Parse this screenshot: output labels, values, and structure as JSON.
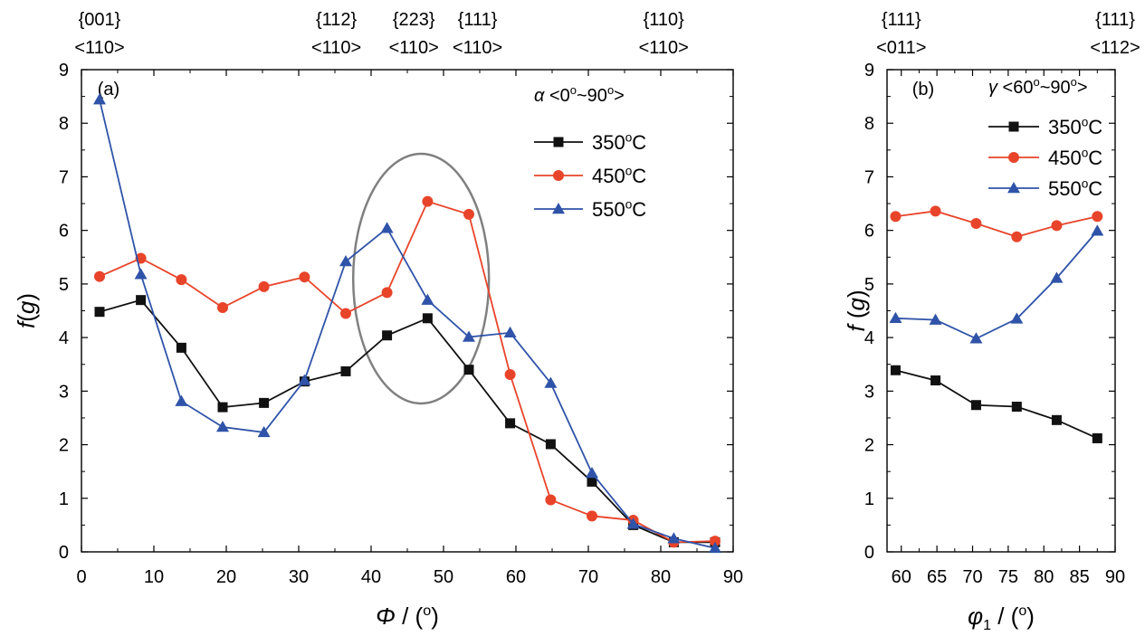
{
  "chart_data": [
    {
      "type": "line",
      "panel_label": "(a)",
      "xlabel": "Φ / (o)",
      "ylabel": "f(g)",
      "xlim": [
        0,
        90
      ],
      "ylim": [
        0,
        9
      ],
      "xticks": [
        0,
        10,
        20,
        30,
        40,
        50,
        60,
        70,
        80,
        90
      ],
      "yticks": [
        0,
        1,
        2,
        3,
        4,
        5,
        6,
        7,
        8,
        9
      ],
      "top_labels": [
        {
          "x": 2.5,
          "line1": "{001}",
          "line2": "<110>"
        },
        {
          "x": 35.2,
          "line1": "{112}",
          "line2": "<110>"
        },
        {
          "x": 45.9,
          "line1": "{223}",
          "line2": "<110>"
        },
        {
          "x": 54.7,
          "line1": "{111}",
          "line2": "<110>"
        },
        {
          "x": 80.4,
          "line1": "{110}",
          "line2": "<110>"
        }
      ],
      "legend_title": "α <0o~90o>",
      "legend_position": "top-right",
      "annotation": "ellipse highlighting Φ ≈ 38–56",
      "x": [
        2.5,
        8.2,
        13.8,
        19.5,
        25.2,
        30.8,
        36.5,
        42.2,
        47.8,
        53.5,
        59.2,
        64.8,
        70.5,
        76.2,
        81.8,
        87.5
      ],
      "series": [
        {
          "name": "350oC",
          "marker": "square",
          "color": "#111111",
          "values": [
            4.48,
            4.7,
            3.81,
            2.7,
            2.78,
            3.18,
            3.37,
            4.04,
            4.36,
            3.4,
            2.4,
            2.01,
            1.31,
            0.5,
            0.18,
            0.18
          ]
        },
        {
          "name": "450oC",
          "marker": "circle",
          "color": "#e8442a",
          "values": [
            5.14,
            5.48,
            5.08,
            4.56,
            4.95,
            5.13,
            4.45,
            4.84,
            6.54,
            6.3,
            3.31,
            0.97,
            0.67,
            0.59,
            0.18,
            0.2
          ]
        },
        {
          "name": "550oC",
          "marker": "triangle",
          "color": "#2f53a8",
          "values": [
            8.44,
            5.18,
            2.81,
            2.33,
            2.23,
            3.2,
            5.42,
            6.04,
            4.7,
            4.01,
            4.09,
            3.15,
            1.47,
            0.52,
            0.25,
            0.07
          ]
        }
      ]
    },
    {
      "type": "line",
      "panel_label": "(b)",
      "xlabel": "φ1 / (o)",
      "ylabel": "f (g)",
      "xlim": [
        58,
        90
      ],
      "ylim": [
        0,
        9
      ],
      "xticks": [
        60,
        65,
        70,
        75,
        80,
        85,
        90
      ],
      "yticks": [
        0,
        1,
        2,
        3,
        4,
        5,
        6,
        7,
        8,
        9
      ],
      "top_labels": [
        {
          "x": 60,
          "line1": "{111}",
          "line2": "<011>"
        },
        {
          "x": 90,
          "line1": "{111}",
          "line2": "<112>"
        }
      ],
      "legend_title": "γ <60o~90o>",
      "legend_position": "top-right",
      "x": [
        59.2,
        64.8,
        70.5,
        76.2,
        81.8,
        87.5
      ],
      "series": [
        {
          "name": "350oC",
          "marker": "square",
          "color": "#111111",
          "values": [
            3.39,
            3.2,
            2.74,
            2.71,
            2.46,
            2.12
          ]
        },
        {
          "name": "450oC",
          "marker": "circle",
          "color": "#e8442a",
          "values": [
            6.26,
            6.36,
            6.13,
            5.88,
            6.09,
            6.26
          ]
        },
        {
          "name": "550oC",
          "marker": "triangle",
          "color": "#2f53a8",
          "values": [
            4.36,
            4.33,
            3.98,
            4.35,
            5.11,
            5.99
          ]
        }
      ]
    }
  ]
}
